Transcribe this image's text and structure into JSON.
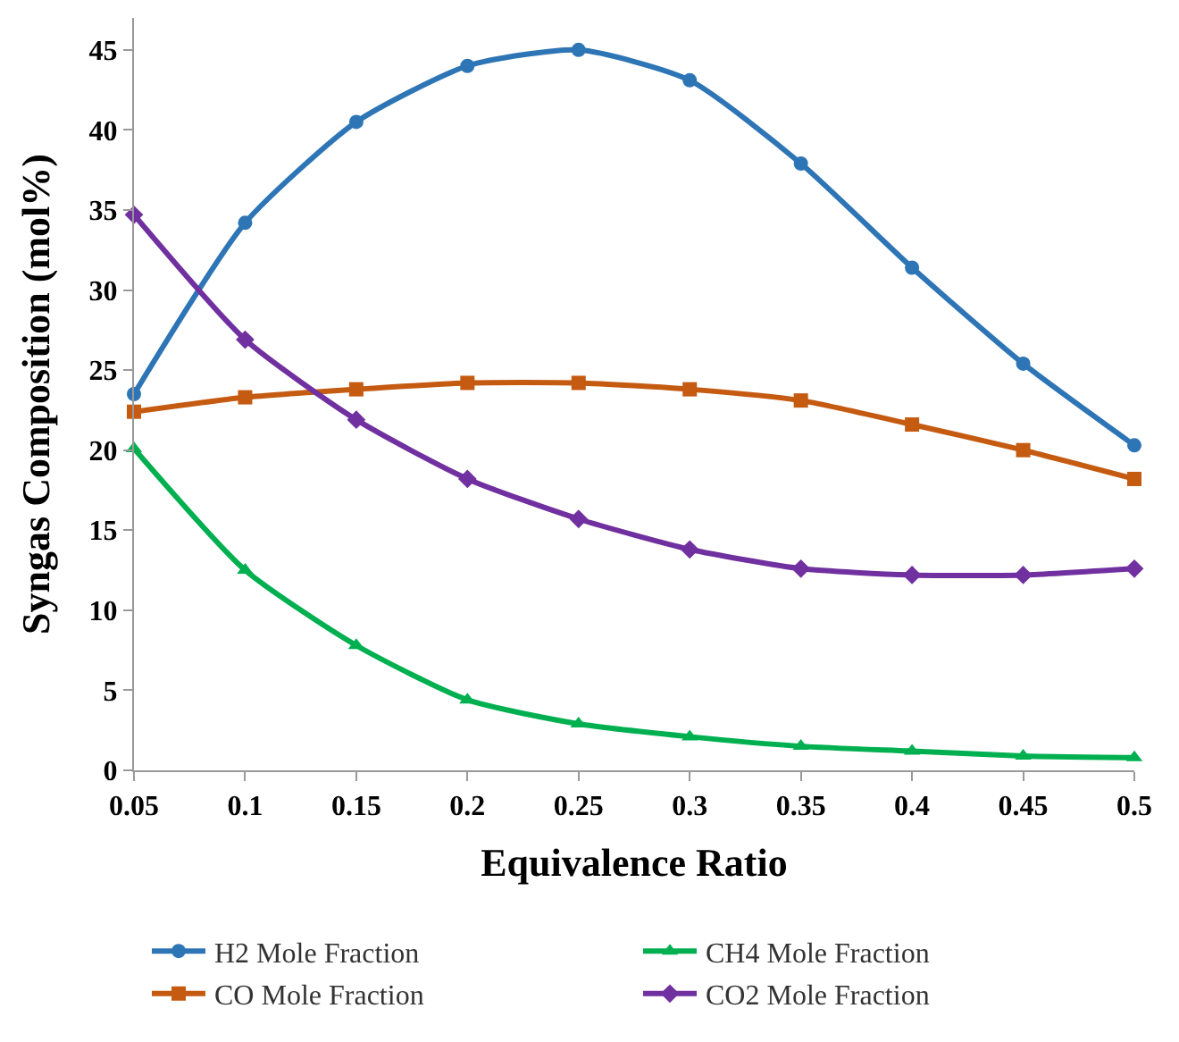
{
  "chart_data": {
    "type": "line",
    "xlabel": "Equivalence Ratio",
    "ylabel": "Syngas Composition (mol%)",
    "categories": [
      "0.05",
      "0.1",
      "0.15",
      "0.2",
      "0.25",
      "0.3",
      "0.35",
      "0.4",
      "0.45",
      "0.5"
    ],
    "series": [
      {
        "name": "H2 Mole Fraction",
        "color": "#2e75b6",
        "marker": "circle",
        "values": [
          23.5,
          34.2,
          40.5,
          44.0,
          45.0,
          43.1,
          37.9,
          31.4,
          25.4,
          20.3
        ]
      },
      {
        "name": "CH4 Mole Fraction",
        "color": "#00b050",
        "marker": "triangle",
        "values": [
          20.1,
          12.5,
          7.8,
          4.4,
          2.9,
          2.1,
          1.5,
          1.2,
          0.9,
          0.8
        ]
      },
      {
        "name": "CO Mole Fraction",
        "color": "#c55a11",
        "marker": "square",
        "values": [
          22.4,
          23.3,
          23.8,
          24.2,
          24.2,
          23.8,
          23.1,
          21.6,
          20.0,
          18.2
        ]
      },
      {
        "name": "CO2 Mole Fraction",
        "color": "#7030a0",
        "marker": "diamond",
        "values": [
          34.7,
          26.9,
          21.9,
          18.2,
          15.7,
          13.8,
          12.6,
          12.2,
          12.2,
          12.6
        ]
      }
    ],
    "ylim": [
      0,
      47
    ],
    "yticks": [
      0,
      5,
      10,
      15,
      20,
      25,
      30,
      35,
      40,
      45
    ],
    "legend": "bottom",
    "line_style": "solid"
  }
}
